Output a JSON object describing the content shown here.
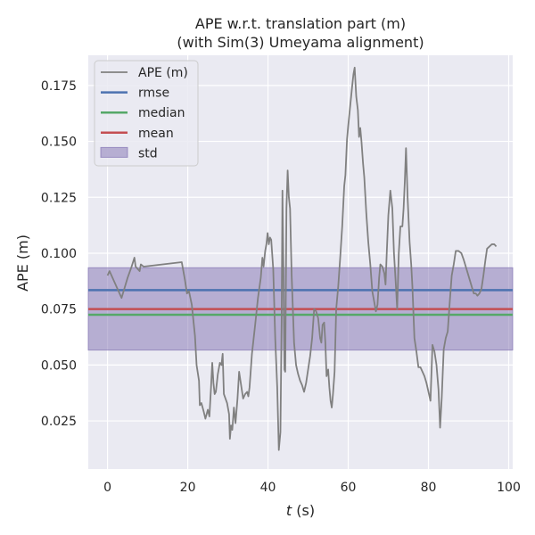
{
  "chart_data": {
    "type": "line",
    "title_line1": "APE w.r.t. translation part (m)",
    "title_line2": "(with Sim(3) Umeyama alignment)",
    "xlabel": "t (s)",
    "xlabel_italic": "t",
    "xlabel_unit": " (s)",
    "ylabel": "APE (m)",
    "xlim": [
      -4.8,
      101
    ],
    "ylim": [
      0.0035,
      0.1885
    ],
    "xticks": [
      0,
      20,
      40,
      60,
      80,
      100
    ],
    "xtick_labels": [
      "0",
      "20",
      "40",
      "60",
      "80",
      "100"
    ],
    "yticks": [
      0.025,
      0.05,
      0.075,
      0.1,
      0.125,
      0.15,
      0.175
    ],
    "ytick_labels": [
      "0.025",
      "0.050",
      "0.075",
      "0.100",
      "0.125",
      "0.150",
      "0.175"
    ],
    "grid": true,
    "legend_position": "top-left",
    "colors": {
      "background": "#eaeaf2",
      "grid": "#ffffff",
      "ape": "#808080",
      "rmse": "#4c72b0",
      "median": "#55a868",
      "mean": "#c44e52",
      "std": "#8172b2"
    },
    "stats": {
      "rmse": 0.0835,
      "median": 0.0725,
      "mean": 0.075,
      "std_low": 0.0567,
      "std_high": 0.0935
    },
    "legend": [
      {
        "key": "ape",
        "label": "APE (m)",
        "kind": "line"
      },
      {
        "key": "rmse",
        "label": "rmse",
        "kind": "line"
      },
      {
        "key": "median",
        "label": "median",
        "kind": "line"
      },
      {
        "key": "mean",
        "label": "mean",
        "kind": "line"
      },
      {
        "key": "std",
        "label": "std",
        "kind": "patch"
      }
    ],
    "series": [
      {
        "key": "ape",
        "name": "APE (m)",
        "points": [
          [
            0.0,
            0.09
          ],
          [
            0.5,
            0.092
          ],
          [
            1.5,
            0.088
          ],
          [
            2.5,
            0.084
          ],
          [
            3.5,
            0.08
          ],
          [
            4.0,
            0.083
          ],
          [
            5.0,
            0.089
          ],
          [
            6.0,
            0.094
          ],
          [
            6.7,
            0.098
          ],
          [
            7.0,
            0.094
          ],
          [
            8.0,
            0.092
          ],
          [
            8.3,
            0.095
          ],
          [
            9.0,
            0.094
          ],
          [
            18.5,
            0.096
          ],
          [
            19.3,
            0.088
          ],
          [
            19.8,
            0.082
          ],
          [
            20.3,
            0.083
          ],
          [
            21.0,
            0.077
          ],
          [
            21.8,
            0.063
          ],
          [
            22.2,
            0.05
          ],
          [
            22.8,
            0.043
          ],
          [
            23.0,
            0.032
          ],
          [
            23.4,
            0.033
          ],
          [
            24.0,
            0.029
          ],
          [
            24.4,
            0.026
          ],
          [
            25.0,
            0.03
          ],
          [
            25.4,
            0.027
          ],
          [
            25.8,
            0.04
          ],
          [
            26.1,
            0.051
          ],
          [
            26.4,
            0.042
          ],
          [
            26.7,
            0.037
          ],
          [
            27.0,
            0.038
          ],
          [
            27.5,
            0.046
          ],
          [
            28.0,
            0.051
          ],
          [
            28.4,
            0.05
          ],
          [
            28.7,
            0.055
          ],
          [
            29.0,
            0.037
          ],
          [
            29.8,
            0.033
          ],
          [
            30.3,
            0.028
          ],
          [
            30.5,
            0.017
          ],
          [
            30.8,
            0.023
          ],
          [
            31.1,
            0.021
          ],
          [
            31.5,
            0.031
          ],
          [
            31.9,
            0.024
          ],
          [
            32.4,
            0.035
          ],
          [
            32.8,
            0.047
          ],
          [
            33.3,
            0.041
          ],
          [
            33.8,
            0.035
          ],
          [
            34.3,
            0.037
          ],
          [
            34.8,
            0.038
          ],
          [
            35.1,
            0.036
          ],
          [
            35.4,
            0.04
          ],
          [
            36.0,
            0.055
          ],
          [
            36.8,
            0.068
          ],
          [
            37.5,
            0.08
          ],
          [
            38.2,
            0.089
          ],
          [
            38.6,
            0.098
          ],
          [
            38.9,
            0.094
          ],
          [
            39.3,
            0.101
          ],
          [
            39.6,
            0.104
          ],
          [
            39.9,
            0.109
          ],
          [
            40.2,
            0.104
          ],
          [
            40.5,
            0.107
          ],
          [
            40.8,
            0.106
          ],
          [
            41.3,
            0.093
          ],
          [
            41.8,
            0.062
          ],
          [
            42.3,
            0.04
          ],
          [
            42.7,
            0.012
          ],
          [
            43.1,
            0.02
          ],
          [
            43.4,
            0.07
          ],
          [
            43.6,
            0.128
          ],
          [
            43.9,
            0.085
          ],
          [
            44.1,
            0.048
          ],
          [
            44.3,
            0.047
          ],
          [
            44.6,
            0.12
          ],
          [
            44.9,
            0.137
          ],
          [
            45.2,
            0.125
          ],
          [
            45.5,
            0.12
          ],
          [
            45.9,
            0.09
          ],
          [
            46.5,
            0.06
          ],
          [
            47.0,
            0.05
          ],
          [
            47.5,
            0.046
          ],
          [
            48.0,
            0.043
          ],
          [
            48.5,
            0.041
          ],
          [
            49.0,
            0.038
          ],
          [
            49.5,
            0.042
          ],
          [
            50.0,
            0.048
          ],
          [
            50.5,
            0.054
          ],
          [
            51.0,
            0.062
          ],
          [
            51.5,
            0.075
          ],
          [
            52.0,
            0.074
          ],
          [
            52.5,
            0.071
          ],
          [
            53.0,
            0.062
          ],
          [
            53.3,
            0.06
          ],
          [
            53.6,
            0.068
          ],
          [
            54.0,
            0.069
          ],
          [
            54.3,
            0.06
          ],
          [
            54.6,
            0.045
          ],
          [
            55.0,
            0.048
          ],
          [
            55.3,
            0.04
          ],
          [
            55.6,
            0.034
          ],
          [
            55.9,
            0.031
          ],
          [
            56.2,
            0.037
          ],
          [
            56.6,
            0.047
          ],
          [
            57.0,
            0.075
          ],
          [
            57.5,
            0.085
          ],
          [
            58.0,
            0.098
          ],
          [
            58.5,
            0.112
          ],
          [
            59.0,
            0.13
          ],
          [
            59.3,
            0.135
          ],
          [
            59.7,
            0.151
          ],
          [
            60.0,
            0.157
          ],
          [
            60.5,
            0.166
          ],
          [
            61.0,
            0.175
          ],
          [
            61.3,
            0.18
          ],
          [
            61.6,
            0.183
          ],
          [
            62.0,
            0.17
          ],
          [
            62.4,
            0.164
          ],
          [
            62.7,
            0.152
          ],
          [
            63.0,
            0.156
          ],
          [
            63.3,
            0.15
          ],
          [
            63.7,
            0.14
          ],
          [
            64.0,
            0.134
          ],
          [
            64.5,
            0.118
          ],
          [
            65.0,
            0.105
          ],
          [
            65.5,
            0.095
          ],
          [
            66.0,
            0.083
          ],
          [
            66.5,
            0.078
          ],
          [
            66.9,
            0.074
          ],
          [
            67.3,
            0.077
          ],
          [
            67.7,
            0.089
          ],
          [
            68.0,
            0.095
          ],
          [
            68.5,
            0.094
          ],
          [
            69.0,
            0.091
          ],
          [
            69.3,
            0.086
          ],
          [
            69.6,
            0.1
          ],
          [
            70.0,
            0.117
          ],
          [
            70.5,
            0.128
          ],
          [
            71.0,
            0.12
          ],
          [
            71.4,
            0.1
          ],
          [
            71.8,
            0.088
          ],
          [
            72.2,
            0.075
          ],
          [
            72.6,
            0.1
          ],
          [
            73.0,
            0.112
          ],
          [
            73.5,
            0.112
          ],
          [
            73.8,
            0.12
          ],
          [
            74.1,
            0.132
          ],
          [
            74.4,
            0.147
          ],
          [
            74.8,
            0.125
          ],
          [
            75.3,
            0.105
          ],
          [
            75.7,
            0.095
          ],
          [
            76.0,
            0.085
          ],
          [
            76.5,
            0.062
          ],
          [
            77.0,
            0.056
          ],
          [
            77.5,
            0.049
          ],
          [
            78.0,
            0.049
          ],
          [
            78.5,
            0.047
          ],
          [
            79.0,
            0.045
          ],
          [
            79.5,
            0.042
          ],
          [
            80.0,
            0.038
          ],
          [
            80.5,
            0.034
          ],
          [
            81.0,
            0.059
          ],
          [
            81.5,
            0.056
          ],
          [
            82.0,
            0.05
          ],
          [
            82.5,
            0.039
          ],
          [
            82.9,
            0.022
          ],
          [
            83.3,
            0.035
          ],
          [
            83.8,
            0.057
          ],
          [
            84.3,
            0.062
          ],
          [
            84.8,
            0.065
          ],
          [
            85.3,
            0.078
          ],
          [
            85.8,
            0.09
          ],
          [
            86.3,
            0.095
          ],
          [
            86.8,
            0.101
          ],
          [
            87.5,
            0.101
          ],
          [
            88.2,
            0.1
          ],
          [
            88.8,
            0.097
          ],
          [
            89.3,
            0.094
          ],
          [
            89.8,
            0.091
          ],
          [
            90.3,
            0.088
          ],
          [
            90.8,
            0.085
          ],
          [
            91.3,
            0.082
          ],
          [
            91.8,
            0.082
          ],
          [
            92.2,
            0.081
          ],
          [
            92.7,
            0.082
          ],
          [
            93.2,
            0.084
          ],
          [
            93.7,
            0.09
          ],
          [
            94.2,
            0.097
          ],
          [
            94.6,
            0.102
          ],
          [
            95.2,
            0.103
          ],
          [
            95.8,
            0.104
          ],
          [
            96.4,
            0.104
          ],
          [
            96.9,
            0.103
          ]
        ]
      }
    ]
  }
}
